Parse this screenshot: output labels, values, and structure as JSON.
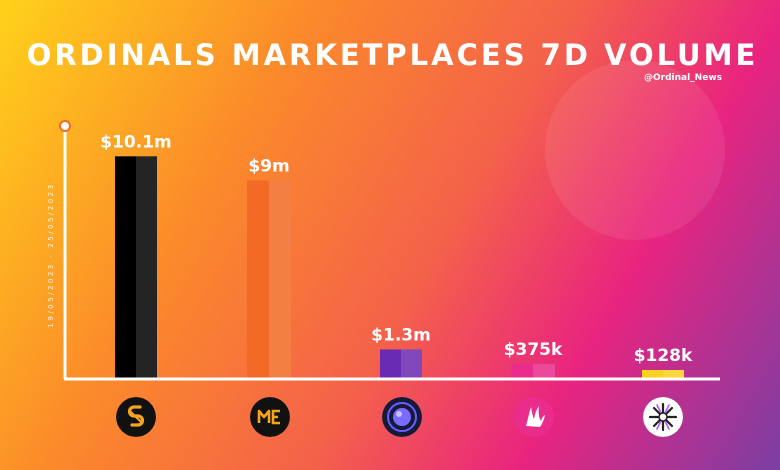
{
  "title": "ORDINALS MARKETPLACES 7D VOLUME",
  "handle": "@Ordinal_News",
  "date_range": "19/05/2023  -  25/05/2023",
  "chart_data": {
    "type": "bar",
    "categories": [
      "",
      "",
      "",
      "",
      ""
    ],
    "values": [
      10.1,
      9.0,
      1.3,
      0.375,
      0.128
    ],
    "value_labels": [
      "$10.1m",
      "$9m",
      "$1.3m",
      "$375k",
      "$128k"
    ],
    "unit": "USD millions",
    "title": "ORDINALS MARKETPLACES 7D VOLUME",
    "xlabel": "",
    "ylabel": "",
    "ylim": [
      0,
      11.3
    ],
    "grid": false,
    "legend": "none",
    "colors": [
      "#000000",
      "#f26a25",
      "#6a2bb3",
      "#ea2c8c",
      "#f7d21e"
    ],
    "logo_icons": [
      "ordinals-wallet-icon",
      "magic-eden-icon",
      "orb-marketplace-icon",
      "dragon-claw-icon",
      "starburst-marketplace-icon"
    ]
  }
}
